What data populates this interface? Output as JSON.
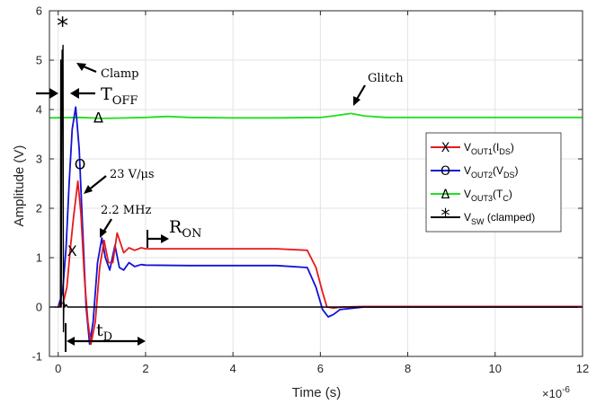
{
  "chart_data": {
    "type": "line",
    "xlabel": "Time (s)",
    "ylabel": "Amplitude (V)",
    "x_exponent_label": "×10",
    "x_exponent_power": "-6",
    "xlim": [
      -0.2,
      12
    ],
    "ylim": [
      -1,
      6
    ],
    "xticks": [
      0,
      2,
      4,
      6,
      8,
      10,
      12
    ],
    "yticks": [
      -1,
      0,
      1,
      2,
      3,
      4,
      5,
      6
    ],
    "grid": true,
    "legend_placement": "right",
    "series": [
      {
        "key": "vout1",
        "color": "#e8191c",
        "marker": "X",
        "legend": {
          "main": "V",
          "sub": "OUT1",
          "mid": "(I",
          "sub2": "DS",
          "end": ")"
        },
        "x": [
          0,
          0.12,
          0.2,
          0.28,
          0.35,
          0.45,
          0.52,
          0.6,
          0.68,
          0.75,
          0.85,
          0.95,
          1.05,
          1.15,
          1.25,
          1.35,
          1.5,
          1.62,
          1.75,
          1.9,
          2.0,
          3,
          4,
          5,
          5.7,
          5.9,
          6.05,
          6.15,
          6.3,
          6.5,
          7,
          8,
          9,
          10,
          11,
          12
        ],
        "y": [
          0,
          0.1,
          0.4,
          1.2,
          1.8,
          2.55,
          1.9,
          0.6,
          -0.3,
          -0.75,
          -0.3,
          0.8,
          1.35,
          0.9,
          0.9,
          1.5,
          1.1,
          1.2,
          1.15,
          1.2,
          1.18,
          1.18,
          1.18,
          1.18,
          1.15,
          0.8,
          0.3,
          0.0,
          -0.02,
          0.0,
          0.01,
          0.01,
          0.01,
          0.01,
          0.01,
          0.01
        ]
      },
      {
        "key": "vout2",
        "color": "#1212d6",
        "marker": "O",
        "legend": {
          "main": "V",
          "sub": "OUT2",
          "mid": "(V",
          "sub2": "DS",
          "end": ")"
        },
        "x": [
          0,
          0.1,
          0.18,
          0.25,
          0.32,
          0.4,
          0.48,
          0.56,
          0.64,
          0.72,
          0.8,
          0.9,
          1.0,
          1.08,
          1.18,
          1.3,
          1.4,
          1.5,
          1.62,
          1.75,
          1.9,
          2.0,
          3,
          4,
          5,
          5.7,
          5.9,
          6.05,
          6.18,
          6.3,
          6.45,
          7,
          8,
          9,
          10,
          11,
          12
        ],
        "y": [
          0,
          0.3,
          1.2,
          2.5,
          3.6,
          4.05,
          3.2,
          1.6,
          0.0,
          -0.75,
          -0.3,
          0.9,
          1.4,
          1.0,
          0.75,
          1.25,
          0.8,
          0.75,
          0.9,
          0.82,
          0.86,
          0.85,
          0.84,
          0.84,
          0.84,
          0.8,
          0.4,
          -0.05,
          -0.2,
          -0.15,
          -0.05,
          0.0,
          0.0,
          0.0,
          0.0,
          0.0,
          0.0
        ]
      },
      {
        "key": "vout3",
        "color": "#1fe01f",
        "marker": "Δ",
        "legend": {
          "main": "V",
          "sub": "OUT3",
          "mid": "(T",
          "sub2": "C",
          "end": ")"
        },
        "x": [
          -0.2,
          0.5,
          1.0,
          2.0,
          2.5,
          3.0,
          4.0,
          5.0,
          6.0,
          6.3,
          6.7,
          7.0,
          7.5,
          8.0,
          9.0,
          10.0,
          11.0,
          12.0
        ],
        "y": [
          3.83,
          3.84,
          3.82,
          3.84,
          3.86,
          3.84,
          3.83,
          3.83,
          3.84,
          3.87,
          3.92,
          3.87,
          3.84,
          3.84,
          3.84,
          3.84,
          3.84,
          3.84
        ]
      },
      {
        "key": "vsw",
        "color": "#000000",
        "marker": "*",
        "legend": {
          "main": "V",
          "sub": "SW",
          "mid": " (clamped)",
          "sub2": "",
          "end": ""
        },
        "x": [
          -0.2,
          0.0,
          0.05,
          0.06,
          0.07,
          0.09,
          0.1,
          0.11,
          0.12,
          0.13,
          0.15,
          0.18,
          0.22,
          0.3,
          0.5,
          1.0,
          2.0,
          4.0,
          6.0,
          8.0,
          10.0,
          12.0
        ],
        "y": [
          0.0,
          0.0,
          0.0,
          5.0,
          0.0,
          5.2,
          4.9,
          5.3,
          -0.5,
          0.1,
          0.0,
          0.05,
          0.0,
          0.0,
          0.0,
          0.0,
          0.0,
          0.0,
          0.0,
          0.0,
          0.0,
          0.0
        ]
      }
    ],
    "markers": [
      {
        "series": "vsw",
        "symbol": "*",
        "x": 0.1,
        "y": 5.65
      },
      {
        "series": "vout3",
        "symbol": "Δ",
        "x": 0.92,
        "y": 3.85
      },
      {
        "series": "vout2",
        "symbol": "O",
        "x": 0.5,
        "y": 2.9
      },
      {
        "series": "vout1",
        "symbol": "X",
        "x": 0.32,
        "y": 1.15
      }
    ],
    "annotations": {
      "clamp": "Clamp",
      "toff_main": "T",
      "toff_sub": "OFF",
      "glitch": "Glitch",
      "slew": "23 V/μs",
      "freq": "2.2 MHz",
      "ron_main": "R",
      "ron_sub": "ON",
      "td_main": "t",
      "td_sub": "D"
    }
  }
}
